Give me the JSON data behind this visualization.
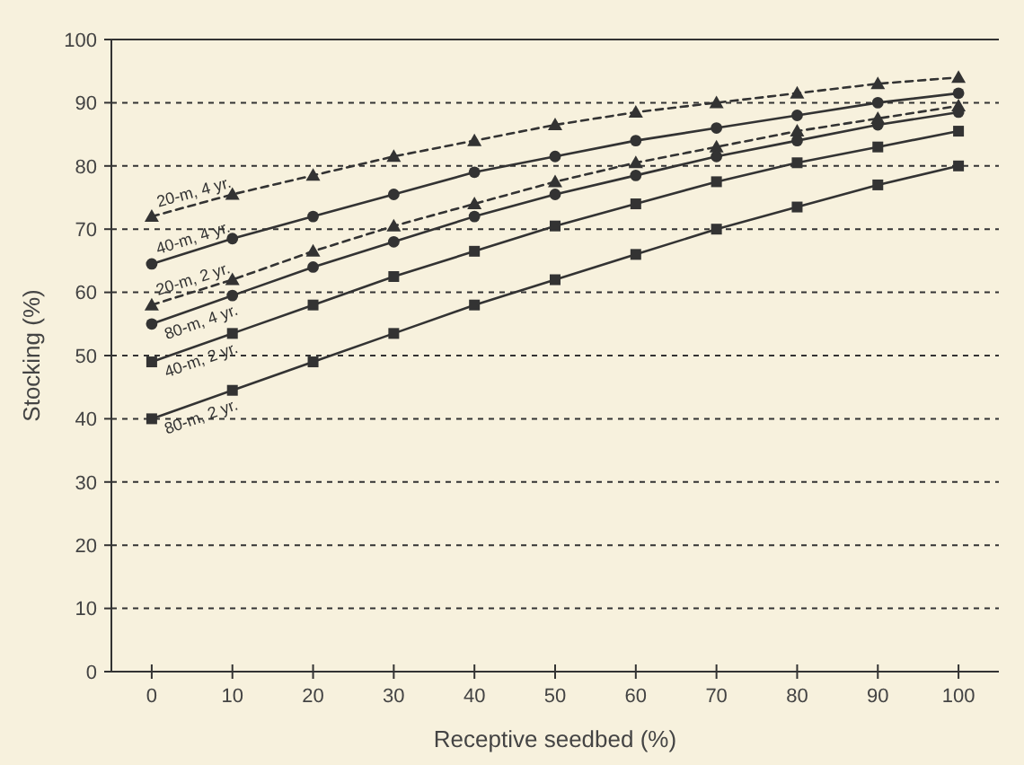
{
  "chart_data": {
    "type": "line",
    "xlabel": "Receptive seedbed (%)",
    "ylabel": "Stocking (%)",
    "x": [
      0,
      10,
      20,
      30,
      40,
      50,
      60,
      70,
      80,
      90,
      100
    ],
    "series": [
      {
        "name": "20-m, 4 yr.",
        "color": "#333333",
        "marker": "triangle",
        "line_style": "dashed",
        "values": [
          72,
          75.5,
          78.5,
          81.5,
          84,
          86.5,
          88.5,
          90,
          91.5,
          93,
          94
        ]
      },
      {
        "name": "40-m, 4 yr.",
        "color": "#333333",
        "marker": "circle",
        "line_style": "solid",
        "values": [
          64.5,
          68.5,
          72,
          75.5,
          79,
          81.5,
          84,
          86,
          88,
          90,
          91.5
        ]
      },
      {
        "name": "20-m, 2 yr.",
        "color": "#333333",
        "marker": "triangle",
        "line_style": "dashed",
        "values": [
          58,
          62,
          66.5,
          70.5,
          74,
          77.5,
          80.5,
          83,
          85.5,
          87.5,
          89.5
        ]
      },
      {
        "name": "80-m, 4 yr.",
        "color": "#333333",
        "marker": "circle",
        "line_style": "solid",
        "values": [
          55,
          59.5,
          64,
          68,
          72,
          75.5,
          78.5,
          81.5,
          84,
          86.5,
          88.5
        ]
      },
      {
        "name": "40-m, 2 yr.",
        "color": "#333333",
        "marker": "square",
        "line_style": "solid",
        "values": [
          49,
          53.5,
          58,
          62.5,
          66.5,
          70.5,
          74,
          77.5,
          80.5,
          83,
          85.5
        ]
      },
      {
        "name": "80-m, 2 yr.",
        "color": "#333333",
        "marker": "square",
        "line_style": "solid",
        "values": [
          40,
          44.5,
          49,
          53.5,
          58,
          62,
          66,
          70,
          73.5,
          77,
          80
        ]
      }
    ],
    "xlim": [
      -5,
      105
    ],
    "xticks": [
      0,
      10,
      20,
      30,
      40,
      50,
      60,
      70,
      80,
      90,
      100
    ],
    "ylim": [
      0,
      100
    ],
    "yticks": [
      0,
      10,
      20,
      30,
      40,
      50,
      60,
      70,
      80,
      90,
      100
    ],
    "grid": "y"
  }
}
